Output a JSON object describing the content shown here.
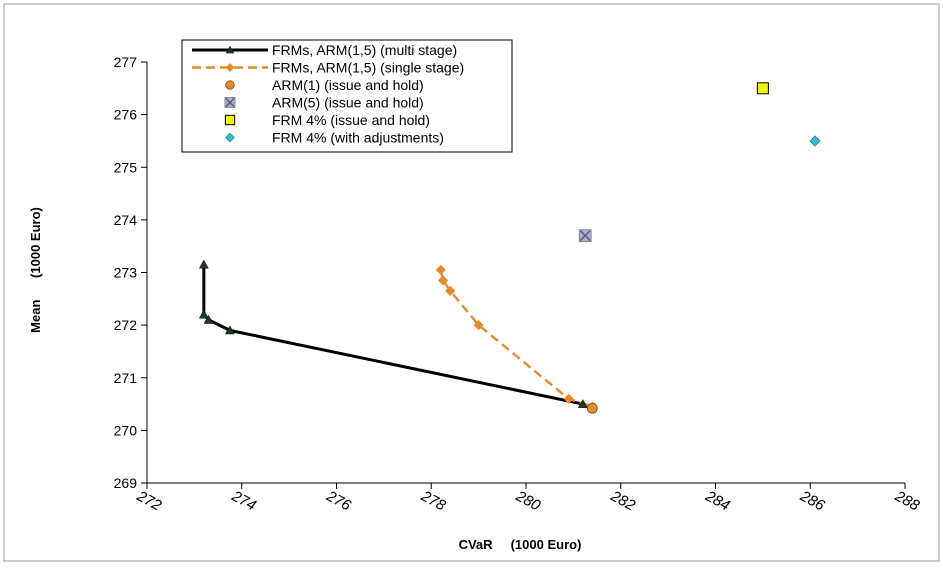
{
  "chart_data": {
    "type": "scatter",
    "xlabel": "CVaR     (1000 Euro)",
    "ylabel": "Mean      (1000 Euro)",
    "xlim": [
      272,
      288
    ],
    "ylim": [
      269,
      277
    ],
    "x_ticks": [
      "272",
      "274",
      "276",
      "278",
      "280",
      "282",
      "284",
      "286",
      "288"
    ],
    "y_ticks": [
      "269",
      "270",
      "271",
      "272",
      "273",
      "274",
      "275",
      "276",
      "277"
    ],
    "grid": false,
    "legend_position": "top-left",
    "series": [
      {
        "name": "FRMs, ARM(1,5) (multi stage)",
        "kind": "line-triangle",
        "color": "#000000",
        "points": [
          [
            273.2,
            273.15
          ],
          [
            273.2,
            272.2
          ],
          [
            273.3,
            272.1
          ],
          [
            273.75,
            271.9
          ],
          [
            281.2,
            270.5
          ],
          [
            281.4,
            270.45
          ]
        ]
      },
      {
        "name": "FRMs, ARM(1,5) (single stage)",
        "kind": "dashed-diamond",
        "color": "#e8892b",
        "points": [
          [
            278.2,
            273.05
          ],
          [
            278.25,
            272.85
          ],
          [
            278.4,
            272.65
          ],
          [
            279.0,
            272.0
          ],
          [
            280.9,
            270.6
          ],
          [
            281.4,
            270.45
          ]
        ]
      },
      {
        "name": "ARM(1) (issue and hold)",
        "kind": "circle",
        "color": "#e8892b",
        "points": [
          [
            281.4,
            270.42
          ]
        ]
      },
      {
        "name": "ARM(5) (issue and hold)",
        "kind": "x-square",
        "color": "#a8aec8",
        "points": [
          [
            281.25,
            273.7
          ]
        ]
      },
      {
        "name": "FRM 4% (issue and hold)",
        "kind": "square",
        "color": "#f2f20a",
        "points": [
          [
            285.0,
            276.5
          ]
        ]
      },
      {
        "name": "FRM 4% (with adjustments)",
        "kind": "diamond",
        "color": "#36bcd3",
        "points": [
          [
            286.1,
            275.5
          ]
        ]
      }
    ]
  }
}
